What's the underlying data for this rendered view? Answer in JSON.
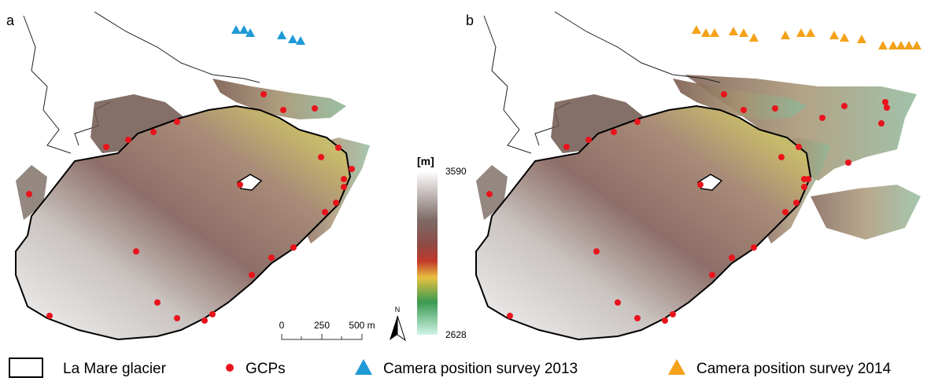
{
  "panels": [
    {
      "label": "a"
    },
    {
      "label": "b"
    }
  ],
  "colorbar": {
    "unit": "[m]",
    "max": 3590,
    "min": 2628
  },
  "scale_bar": {
    "ticks": [
      "0",
      "250",
      "500 m"
    ]
  },
  "north_arrow": "N",
  "legend": [
    {
      "label": "La Mare glacier"
    },
    {
      "label": "GCPs"
    },
    {
      "label": "Camera position survey 2013"
    },
    {
      "label": "Camera position survey 2014"
    }
  ]
}
